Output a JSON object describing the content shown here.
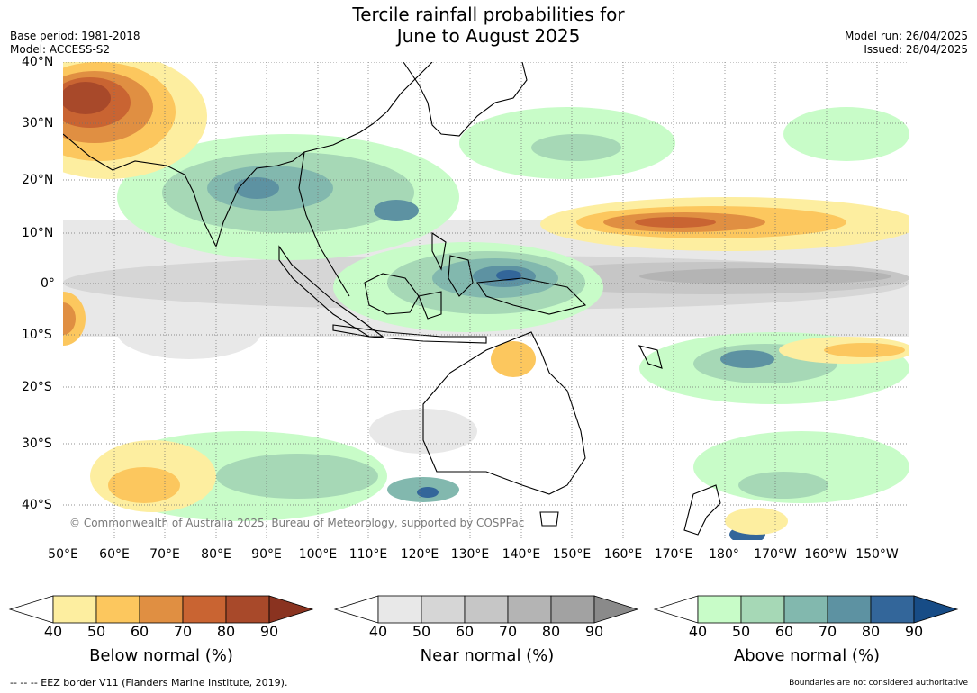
{
  "header": {
    "title_line1": "Tercile rainfall probabilities for",
    "title_line2": "June to August 2025",
    "base_period": "Base period: 1981-2018",
    "model": "Model: ACCESS-S2",
    "model_run": "Model run: 26/04/2025",
    "issued": "Issued: 28/04/2025"
  },
  "map": {
    "lat_labels": [
      "40°N",
      "30°N",
      "20°N",
      "10°N",
      "0°",
      "10°S",
      "20°S",
      "30°S",
      "40°S"
    ],
    "lon_labels": [
      "50°E",
      "60°E",
      "70°E",
      "80°E",
      "90°E",
      "100°E",
      "110°E",
      "120°E",
      "130°E",
      "140°E",
      "150°E",
      "160°E",
      "170°E",
      "180°",
      "170°W",
      "160°W",
      "150°W"
    ],
    "copyright": "© Commonwealth of Australia 2025, Bureau of Meteorology, supported by COSPPac"
  },
  "colorbars": [
    {
      "name": "below",
      "title": "Below normal (%)",
      "ticks": [
        "40",
        "50",
        "60",
        "70",
        "80",
        "90"
      ],
      "colors": [
        "#fdeea0",
        "#fcc75e",
        "#e08f42",
        "#c96432",
        "#a8492a",
        "#8a3320"
      ]
    },
    {
      "name": "near",
      "title": "Near normal (%)",
      "ticks": [
        "40",
        "50",
        "60",
        "70",
        "80",
        "90"
      ],
      "colors": [
        "#e8e8e8",
        "#d6d6d6",
        "#c6c6c6",
        "#b4b4b4",
        "#a2a2a2",
        "#8a8a8a"
      ]
    },
    {
      "name": "above",
      "title": "Above normal (%)",
      "ticks": [
        "40",
        "50",
        "60",
        "70",
        "80",
        "90"
      ],
      "colors": [
        "#c8fcc8",
        "#a6d8b6",
        "#82b8ae",
        "#5d92a2",
        "#33669a",
        "#174c86"
      ]
    }
  ],
  "footer": {
    "eez_note": "--  --  -- EEZ border V11 (Flanders Marine Institute, 2019).",
    "boundaries_note": "Boundaries are not considered authoritative"
  }
}
